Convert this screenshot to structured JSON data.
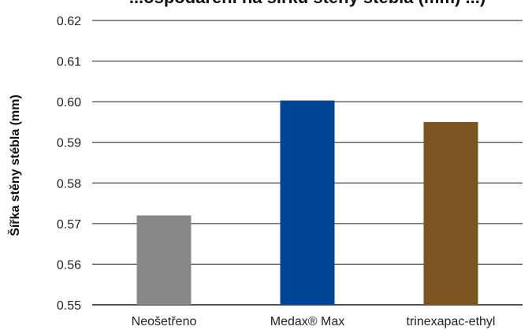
{
  "chart_data": {
    "type": "bar",
    "title": "...ospodaření na šířku stěny stébla (mm) ...)",
    "xlabel": "",
    "ylabel": "Šířka stěny stébla (mm)",
    "ylim": [
      0.55,
      0.62
    ],
    "yticks": [
      "0.55",
      "0.56",
      "0.57",
      "0.58",
      "0.59",
      "0.60",
      "0.61",
      "0.62"
    ],
    "grid": true,
    "categories": [
      "Neošetřeno",
      "Medax® Max",
      "trinexapac-ethyl"
    ],
    "values": [
      0.572,
      0.6003,
      0.595
    ],
    "colors": [
      "#878787",
      "#004494",
      "#7a5522"
    ]
  }
}
